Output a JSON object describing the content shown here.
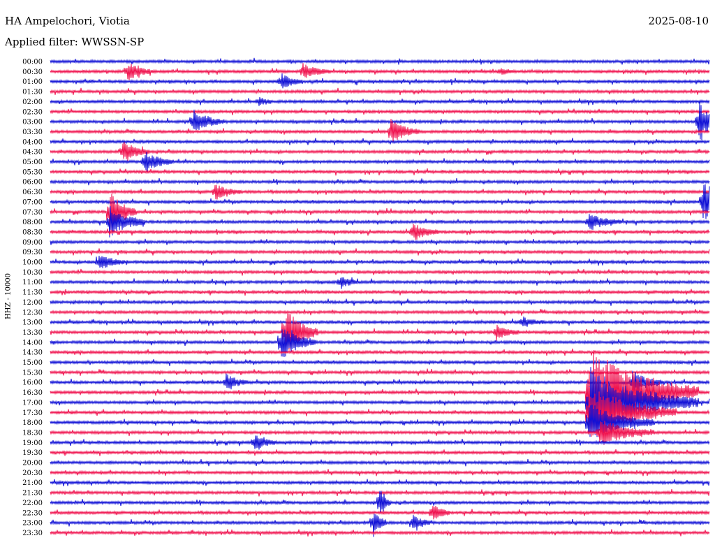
{
  "header": {
    "station": "HA Ampelochori, Viotia",
    "date": "2025-08-10",
    "filter": "Applied filter: WWSSN-SP"
  },
  "axis": {
    "channel_label": "HHZ - 10000"
  },
  "chart_data": {
    "type": "line",
    "kind": "helicorder",
    "title": "HA Ampelochori, Viotia",
    "date": "2025-08-10",
    "filter": "WWSSN-SP",
    "channel": "HHZ - 10000",
    "row_interval_minutes": 30,
    "row_labels": [
      "00:00",
      "00:30",
      "01:00",
      "01:30",
      "02:00",
      "02:30",
      "03:00",
      "03:30",
      "04:00",
      "04:30",
      "05:00",
      "05:30",
      "06:00",
      "06:30",
      "07:00",
      "07:30",
      "08:00",
      "08:30",
      "09:00",
      "09:30",
      "10:00",
      "10:30",
      "11:00",
      "11:30",
      "12:00",
      "12:30",
      "13:00",
      "13:30",
      "14:00",
      "14:30",
      "15:00",
      "15:30",
      "16:00",
      "16:30",
      "17:00",
      "17:30",
      "18:00",
      "18:30",
      "19:00",
      "19:30",
      "20:00",
      "20:30",
      "21:00",
      "21:30",
      "22:00",
      "22:30",
      "23:00",
      "23:30"
    ],
    "series_colors": [
      "#1010d6",
      "#f0134f"
    ],
    "events": [
      {
        "row": 1,
        "minute": 3.5,
        "amp": 14,
        "dur": 1.2
      },
      {
        "row": 1,
        "minute": 11.5,
        "amp": 12,
        "dur": 1.2
      },
      {
        "row": 1,
        "minute": 20.5,
        "amp": 6,
        "dur": 0.6
      },
      {
        "row": 2,
        "minute": 10.5,
        "amp": 12,
        "dur": 1.0
      },
      {
        "row": 4,
        "minute": 9.5,
        "amp": 7,
        "dur": 0.6
      },
      {
        "row": 6,
        "minute": 6.5,
        "amp": 18,
        "dur": 1.4
      },
      {
        "row": 6,
        "minute": 29.5,
        "amp": 30,
        "dur": 1.4
      },
      {
        "row": 7,
        "minute": 15.5,
        "amp": 18,
        "dur": 1.3
      },
      {
        "row": 9,
        "minute": 3.3,
        "amp": 16,
        "dur": 1.2
      },
      {
        "row": 10,
        "minute": 4.3,
        "amp": 16,
        "dur": 1.3
      },
      {
        "row": 13,
        "minute": 7.5,
        "amp": 12,
        "dur": 1.2
      },
      {
        "row": 14,
        "minute": 29.7,
        "amp": 32,
        "dur": 1.6
      },
      {
        "row": 15,
        "minute": 2.7,
        "amp": 34,
        "dur": 1.2
      },
      {
        "row": 16,
        "minute": 2.7,
        "amp": 24,
        "dur": 1.6
      },
      {
        "row": 16,
        "minute": 24.5,
        "amp": 12,
        "dur": 1.5
      },
      {
        "row": 17,
        "minute": 16.5,
        "amp": 14,
        "dur": 1.2
      },
      {
        "row": 20,
        "minute": 2.2,
        "amp": 12,
        "dur": 1.2
      },
      {
        "row": 22,
        "minute": 13.2,
        "amp": 10,
        "dur": 0.8
      },
      {
        "row": 26,
        "minute": 21.5,
        "amp": 8,
        "dur": 1.0
      },
      {
        "row": 27,
        "minute": 10.7,
        "amp": 38,
        "dur": 1.5
      },
      {
        "row": 27,
        "minute": 20.3,
        "amp": 12,
        "dur": 1.0
      },
      {
        "row": 28,
        "minute": 10.5,
        "amp": 26,
        "dur": 1.6
      },
      {
        "row": 32,
        "minute": 8.0,
        "amp": 12,
        "dur": 1.0
      },
      {
        "row": 32,
        "minute": 26.5,
        "amp": 16,
        "dur": 1.4
      },
      {
        "row": 33,
        "minute": 24.5,
        "amp": 68,
        "dur": 5.0
      },
      {
        "row": 34,
        "minute": 24.5,
        "amp": 50,
        "dur": 5.0
      },
      {
        "row": 35,
        "minute": 24.5,
        "amp": 40,
        "dur": 4.0
      },
      {
        "row": 36,
        "minute": 24.5,
        "amp": 30,
        "dur": 3.0
      },
      {
        "row": 37,
        "minute": 25.0,
        "amp": 20,
        "dur": 2.5
      },
      {
        "row": 38,
        "minute": 9.3,
        "amp": 12,
        "dur": 1.0
      },
      {
        "row": 44,
        "minute": 15.0,
        "amp": 26,
        "dur": 0.5
      },
      {
        "row": 45,
        "minute": 17.4,
        "amp": 14,
        "dur": 0.8
      },
      {
        "row": 46,
        "minute": 14.7,
        "amp": 22,
        "dur": 0.6
      },
      {
        "row": 46,
        "minute": 16.5,
        "amp": 14,
        "dur": 0.8
      }
    ]
  }
}
